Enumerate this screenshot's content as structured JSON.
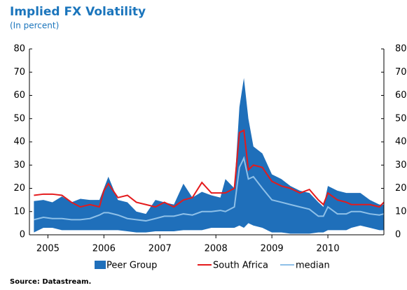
{
  "chart_data": {
    "type": "band-line",
    "title": "Implied FX Volatility",
    "subtitle": "(In percent)",
    "source": "Source: Datastream.",
    "x": [
      2004.75,
      2004.92,
      2005.08,
      2005.25,
      2005.42,
      2005.58,
      2005.75,
      2005.92,
      2006.0,
      2006.08,
      2006.25,
      2006.42,
      2006.58,
      2006.75,
      2006.92,
      2007.08,
      2007.25,
      2007.42,
      2007.58,
      2007.75,
      2007.92,
      2008.08,
      2008.17,
      2008.33,
      2008.42,
      2008.5,
      2008.58,
      2008.67,
      2008.83,
      2009.0,
      2009.17,
      2009.33,
      2009.5,
      2009.67,
      2009.83,
      2009.92,
      2010.0,
      2010.17,
      2010.33,
      2010.42,
      2010.58,
      2010.75,
      2010.92,
      2011.0
    ],
    "series": [
      {
        "name": "Peer Group",
        "color": "#1f6fba",
        "kind": "band",
        "values": [
          14.5,
          15,
          14,
          16.5,
          14,
          15.5,
          15,
          15,
          20,
          25,
          15,
          14,
          10,
          9,
          15,
          14,
          13,
          22,
          16,
          18.5,
          17,
          16,
          24,
          20,
          55,
          67.5,
          50,
          38,
          35,
          26,
          24,
          21,
          19,
          18,
          14,
          12,
          21,
          19,
          18,
          18,
          18,
          15,
          13,
          13
        ],
        "low": [
          1,
          3,
          3,
          2,
          2,
          2,
          2,
          2,
          2,
          2,
          2,
          1.5,
          1,
          1,
          1.5,
          1.5,
          1.5,
          2,
          2,
          2,
          3,
          3,
          3,
          3,
          4,
          3,
          5,
          4,
          3,
          1,
          1,
          0.5,
          0.5,
          0.5,
          1,
          1,
          2,
          2,
          2,
          3,
          4,
          3,
          2,
          2
        ]
      },
      {
        "name": "South Africa",
        "color": "#e41a1c",
        "kind": "line",
        "values": [
          17,
          17.5,
          17.5,
          17,
          14,
          12,
          13,
          12,
          19,
          22,
          16,
          17,
          14,
          13,
          12,
          14,
          12,
          15,
          16,
          22.5,
          18,
          18,
          18,
          20,
          44,
          45,
          28,
          30,
          29,
          23,
          21,
          20,
          18,
          19.5,
          15,
          13,
          18,
          15,
          14,
          13,
          13,
          13,
          12,
          14
        ]
      },
      {
        "name": "median",
        "color": "#8ec0e8",
        "kind": "line",
        "values": [
          6.5,
          7.5,
          7,
          7,
          6.5,
          6.5,
          7,
          8.5,
          9.5,
          9.5,
          8.5,
          7,
          6.5,
          6,
          7,
          8,
          8,
          9,
          8.5,
          10,
          10,
          10.5,
          10,
          12,
          29,
          33,
          24,
          25,
          20,
          15,
          14,
          13,
          12,
          11,
          8,
          8,
          12,
          9,
          9,
          10,
          10,
          9,
          8.5,
          9
        ]
      }
    ],
    "xlim": [
      2004.67,
      2011.0
    ],
    "xticks": [
      2005,
      2006,
      2007,
      2008,
      2009,
      2010
    ],
    "ylim": [
      0,
      80
    ],
    "yticks": [
      0,
      10,
      20,
      30,
      40,
      50,
      60,
      70,
      80
    ],
    "y2lim": [
      0,
      80
    ],
    "y2ticks": [
      0,
      10,
      20,
      30,
      40,
      50,
      60,
      70,
      80
    ]
  }
}
